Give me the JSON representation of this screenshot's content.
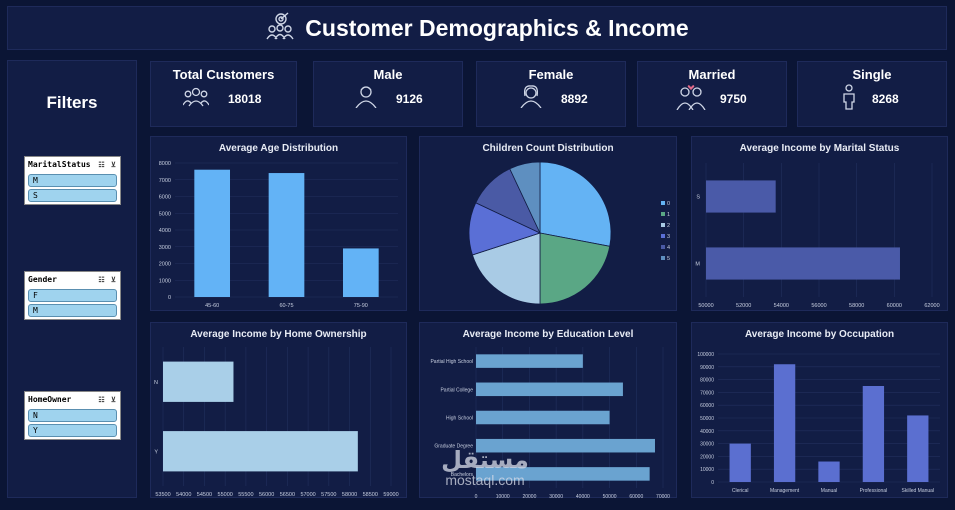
{
  "header": {
    "title": "Customer Demographics & Income",
    "icon": "people-target-icon"
  },
  "filters": {
    "title": "Filters",
    "slicers": [
      {
        "name": "MaritalStatus",
        "items": [
          "M",
          "S"
        ]
      },
      {
        "name": "Gender",
        "items": [
          "F",
          "M"
        ]
      },
      {
        "name": "HomeOwner",
        "items": [
          "N",
          "Y"
        ]
      }
    ]
  },
  "kpis": [
    {
      "label": "Total Customers",
      "value": "18018",
      "icon": "people-group-icon"
    },
    {
      "label": "Male",
      "value": "9126",
      "icon": "man-icon"
    },
    {
      "label": "Female",
      "value": "8892",
      "icon": "woman-icon"
    },
    {
      "label": "Married",
      "value": "9750",
      "icon": "couple-icon"
    },
    {
      "label": "Single",
      "value": "8268",
      "icon": "single-person-icon"
    }
  ],
  "colors": {
    "background": "#0b1535",
    "card": "#121d45",
    "bar_blue": "#63b3f6",
    "bar_slate": "#4a5aa8",
    "bar_light": "#a9cfe8",
    "bar_steel": "#6aa3d0",
    "bar_indigo": "#5b6fd0"
  },
  "chart_data": [
    {
      "id": "age",
      "type": "bar",
      "title": "Average Age Distribution",
      "categories": [
        "45-60",
        "60-75",
        "75-90"
      ],
      "values": [
        7600,
        7400,
        2900
      ],
      "ylim": [
        0,
        8000
      ],
      "yticks": [
        "0",
        "1000",
        "2000",
        "3000",
        "4000",
        "5000",
        "6000",
        "7000",
        "8000"
      ]
    },
    {
      "id": "children",
      "type": "pie",
      "title": "Children Count Distribution",
      "categories": [
        "0",
        "1",
        "2",
        "3",
        "4",
        "5"
      ],
      "values": [
        28,
        22,
        20,
        12,
        11,
        7
      ],
      "colors": [
        "#64b3f4",
        "#5aa785",
        "#a9cbe5",
        "#5a6fd6",
        "#4a5aa5",
        "#5e8fc0"
      ],
      "legend": "right"
    },
    {
      "id": "marital",
      "type": "bar",
      "orientation": "horizontal",
      "title": "Average Income by Marital Status",
      "categories": [
        "S",
        "M"
      ],
      "values": [
        53700,
        60300
      ],
      "xlim": [
        50000,
        62000
      ],
      "xticks": [
        "50000",
        "52000",
        "54000",
        "56000",
        "58000",
        "60000",
        "62000"
      ]
    },
    {
      "id": "home",
      "type": "bar",
      "orientation": "horizontal",
      "title": "Average Income by Home Ownership",
      "categories": [
        "N",
        "Y"
      ],
      "values": [
        55200,
        58200
      ],
      "xlim": [
        53500,
        59000
      ],
      "xticks": [
        "53500",
        "54000",
        "54500",
        "55000",
        "55500",
        "56000",
        "56500",
        "57000",
        "57500",
        "58000",
        "58500",
        "59000"
      ]
    },
    {
      "id": "education",
      "type": "bar",
      "orientation": "horizontal",
      "title": "Average Income by Education Level",
      "categories": [
        "Partial High School",
        "Partial College",
        "High School",
        "Graduate Degree",
        "Bachelors"
      ],
      "values": [
        40000,
        55000,
        50000,
        67000,
        65000
      ],
      "xlim": [
        0,
        70000
      ],
      "xticks": [
        "0",
        "10000",
        "20000",
        "30000",
        "40000",
        "50000",
        "60000",
        "70000"
      ]
    },
    {
      "id": "occupation",
      "type": "bar",
      "title": "Average Income by Occupation",
      "categories": [
        "Clerical",
        "Management",
        "Manual",
        "Professional",
        "Skilled Manual"
      ],
      "values": [
        30000,
        92000,
        16000,
        75000,
        52000
      ],
      "ylim": [
        0,
        100000
      ],
      "yticks": [
        "0",
        "10000",
        "20000",
        "30000",
        "40000",
        "50000",
        "60000",
        "70000",
        "80000",
        "90000",
        "100000"
      ]
    }
  ],
  "watermark": {
    "arabic": "مستقل",
    "latin": "mostaql.com"
  }
}
